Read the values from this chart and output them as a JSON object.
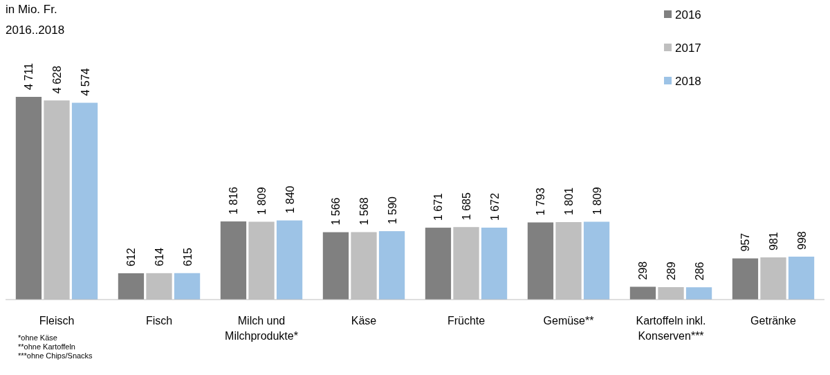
{
  "chart_data": {
    "type": "bar",
    "title": "in Mio. Fr.",
    "subtitle": "2016..2018",
    "categories": [
      "Fleisch",
      "Fisch",
      "Milch und Milchprodukte*",
      "Käse",
      "Früchte",
      "Gemüse**",
      "Kartoffeln inkl. Konserven***",
      "Getränke"
    ],
    "series": [
      {
        "name": "2016",
        "color": "#808080",
        "values": [
          4711,
          612,
          1816,
          1566,
          1671,
          1793,
          298,
          957
        ],
        "value_labels": [
          "4 711",
          "612",
          "1 816",
          "1 566",
          "1 671",
          "1 793",
          "298",
          "957"
        ]
      },
      {
        "name": "2017",
        "color": "#bfbfbf",
        "values": [
          4628,
          614,
          1809,
          1568,
          1685,
          1801,
          289,
          981
        ],
        "value_labels": [
          "4 628",
          "614",
          "1 809",
          "1 568",
          "1 685",
          "1 801",
          "289",
          "981"
        ]
      },
      {
        "name": "2018",
        "color": "#9dc3e6",
        "values": [
          4574,
          615,
          1840,
          1590,
          1672,
          1809,
          286,
          998
        ],
        "value_labels": [
          "4 574",
          "615",
          "1 840",
          "1 590",
          "1 672",
          "1 809",
          "286",
          "998"
        ]
      }
    ],
    "legend": "top right",
    "annotations": [
      "*ohne Käse",
      "**ohne Kartoffeln",
      "***ohne Chips/Snacks"
    ]
  }
}
